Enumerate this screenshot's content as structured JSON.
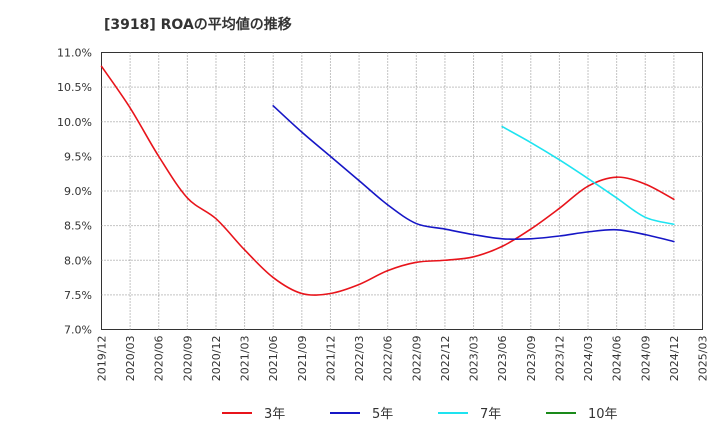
{
  "chart_data": {
    "type": "line",
    "title": "[3918]  ROAの平均値の推移",
    "xlabel": "",
    "ylabel": "",
    "ylim": [
      7.0,
      11.0
    ],
    "y_ticks": [
      "7.0%",
      "7.5%",
      "8.0%",
      "8.5%",
      "9.0%",
      "9.5%",
      "10.0%",
      "10.5%",
      "11.0%"
    ],
    "x_ticks": [
      "2019/12",
      "2020/03",
      "2020/06",
      "2020/09",
      "2020/12",
      "2021/03",
      "2021/06",
      "2021/09",
      "2021/12",
      "2022/03",
      "2022/06",
      "2022/09",
      "2022/12",
      "2023/03",
      "2023/06",
      "2023/09",
      "2023/12",
      "2024/03",
      "2024/06",
      "2024/09",
      "2024/12",
      "2025/03"
    ],
    "grid": true,
    "legend_position": "bottom",
    "series": [
      {
        "name": "3年",
        "color": "#e8141b",
        "x": [
          "2019/12",
          "2020/03",
          "2020/06",
          "2020/09",
          "2020/12",
          "2021/03",
          "2021/06",
          "2021/09",
          "2021/12",
          "2022/03",
          "2022/06",
          "2022/09",
          "2022/12",
          "2023/03",
          "2023/06",
          "2023/09",
          "2023/12",
          "2024/03",
          "2024/06",
          "2024/09",
          "2024/12"
        ],
        "values": [
          10.8,
          10.2,
          9.5,
          8.9,
          8.6,
          8.15,
          7.75,
          7.52,
          7.52,
          7.65,
          7.85,
          7.97,
          8.0,
          8.05,
          8.2,
          8.45,
          8.75,
          9.07,
          9.2,
          9.1,
          8.88
        ]
      },
      {
        "name": "5年",
        "color": "#1616c6",
        "x": [
          "2021/06",
          "2021/09",
          "2021/12",
          "2022/03",
          "2022/06",
          "2022/09",
          "2022/12",
          "2023/03",
          "2023/06",
          "2023/09",
          "2023/12",
          "2024/03",
          "2024/06",
          "2024/09",
          "2024/12"
        ],
        "values": [
          10.23,
          9.85,
          9.5,
          9.15,
          8.8,
          8.53,
          8.45,
          8.37,
          8.31,
          8.31,
          8.35,
          8.41,
          8.44,
          8.37,
          8.27
        ]
      },
      {
        "name": "7年",
        "color": "#1ee3f0",
        "x": [
          "2023/06",
          "2023/09",
          "2023/12",
          "2024/03",
          "2024/06",
          "2024/09",
          "2024/12"
        ],
        "values": [
          9.93,
          9.7,
          9.45,
          9.18,
          8.9,
          8.62,
          8.52
        ]
      },
      {
        "name": "10年",
        "color": "#1a8a1a",
        "x": [],
        "values": []
      }
    ]
  }
}
